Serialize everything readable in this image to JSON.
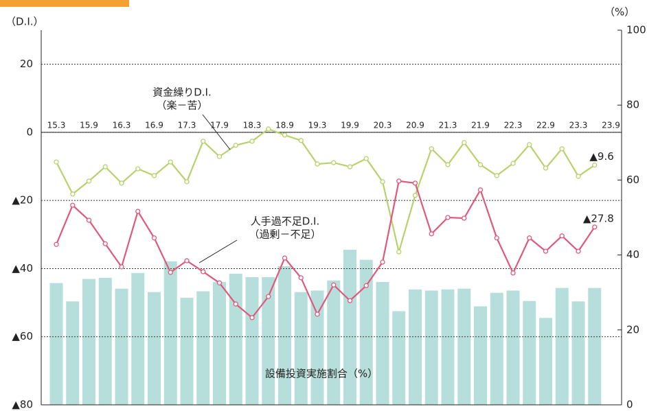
{
  "chart_data": {
    "type": "bar-line",
    "y_label": "（D.I.）",
    "y2_label": "（%）",
    "categories": [
      "15.3",
      null,
      "15.9",
      null,
      "16.3",
      null,
      "16.9",
      null,
      "17.3",
      null,
      "17.9",
      null,
      "18.3",
      null,
      "18.9",
      null,
      "19.3",
      null,
      "19.9",
      null,
      "20.3",
      null,
      "20.9",
      null,
      "21.3",
      null,
      "21.9",
      null,
      "22.3",
      null,
      "22.9",
      null,
      "23.3",
      null,
      "23.9"
    ],
    "ylim": [
      -80,
      30
    ],
    "yticks": [
      {
        "value": -80,
        "label": "▲80"
      },
      {
        "value": -60,
        "label": "▲60"
      },
      {
        "value": -40,
        "label": "▲40"
      },
      {
        "value": -20,
        "label": "▲20"
      },
      0,
      20
    ],
    "y2lim": [
      0,
      100
    ],
    "y2ticks": [
      0,
      20,
      40,
      60,
      80,
      100
    ],
    "grid": true,
    "series": [
      {
        "name": "資金繰りD.I.",
        "note": "（楽－苦）",
        "type": "line",
        "color": "#b7d26b",
        "values": [
          -8.7,
          -18.1,
          -14.3,
          -10.1,
          -14.9,
          -10.7,
          -12.7,
          -8.7,
          -14.5,
          -2.6,
          -7.1,
          -3.8,
          -2.6,
          1.0,
          -0.8,
          -2.4,
          -9.3,
          -8.9,
          -10.1,
          -7.7,
          -14.5,
          -35.1,
          -18.5,
          -4.8,
          -9.5,
          -3.0,
          -9.5,
          -12.7,
          -9.1,
          -3.6,
          -10.5,
          -4.8,
          -12.9,
          -9.6,
          null
        ],
        "value_labels": [
          null,
          null,
          null,
          null,
          null,
          null,
          null,
          null,
          null,
          null,
          null,
          null,
          null,
          null,
          null,
          null,
          null,
          null,
          null,
          null,
          null,
          null,
          null,
          null,
          null,
          null,
          null,
          null,
          null,
          null,
          null,
          null,
          null,
          "▲9.6",
          null
        ]
      },
      {
        "name": "人手過不足D.I.",
        "note": "（過剰－不足）",
        "type": "line",
        "color": "#e0587c",
        "values": [
          -32.9,
          -21.4,
          -25.8,
          -32.7,
          -39.5,
          -23.2,
          -31.0,
          -41.1,
          -37.7,
          -40.9,
          -44.2,
          -50.4,
          -54.4,
          -48.2,
          -36.9,
          -42.7,
          -53.4,
          -44.8,
          -49.4,
          -45.0,
          -38.1,
          -14.3,
          -14.9,
          -29.8,
          -25.0,
          -25.2,
          -16.9,
          -31.0,
          -41.3,
          -31.0,
          -34.9,
          -30.4,
          -34.9,
          -27.8,
          null
        ],
        "value_labels": [
          null,
          null,
          null,
          null,
          null,
          null,
          null,
          null,
          null,
          null,
          null,
          null,
          null,
          null,
          null,
          null,
          null,
          null,
          null,
          null,
          null,
          null,
          null,
          null,
          null,
          null,
          null,
          null,
          null,
          null,
          null,
          null,
          null,
          "▲27.8",
          null
        ]
      },
      {
        "name": "設備投資実施割合（%）",
        "type": "bar",
        "axis": "y2",
        "color": "#b6dfdb",
        "values": [
          32.5,
          27.6,
          33.6,
          33.9,
          31.0,
          35.2,
          30.1,
          38.3,
          28.6,
          30.3,
          32.8,
          35.0,
          34.1,
          34.1,
          37.0,
          30.1,
          30.5,
          33.2,
          41.4,
          38.7,
          32.8,
          25.0,
          30.8,
          30.5,
          30.8,
          31.0,
          26.3,
          29.9,
          30.5,
          27.7,
          23.2,
          31.2,
          27.6,
          31.2,
          null
        ]
      }
    ]
  }
}
